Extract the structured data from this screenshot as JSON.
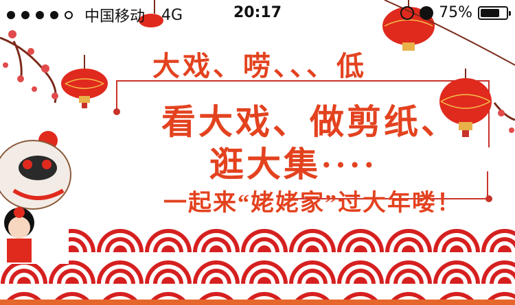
{
  "status_bar": {
    "carrier": "中国移动",
    "network": "4G",
    "time": "20:17",
    "battery_percent": "75%",
    "battery_level": 0.75
  },
  "banner": {
    "line1": "大戏、唠、、、低",
    "line2": "看大戏、做剪纸、",
    "line3": "逛大集····",
    "line4": "一起来“姥姥家”过大年喽！",
    "colors": {
      "accent_red": "#e3421f",
      "deep_red": "#d62020",
      "gold": "#e8b14a"
    },
    "icons": [
      "lantern-icon",
      "lion-dance-icon",
      "plum-blossom-icon",
      "wave-pattern"
    ]
  }
}
